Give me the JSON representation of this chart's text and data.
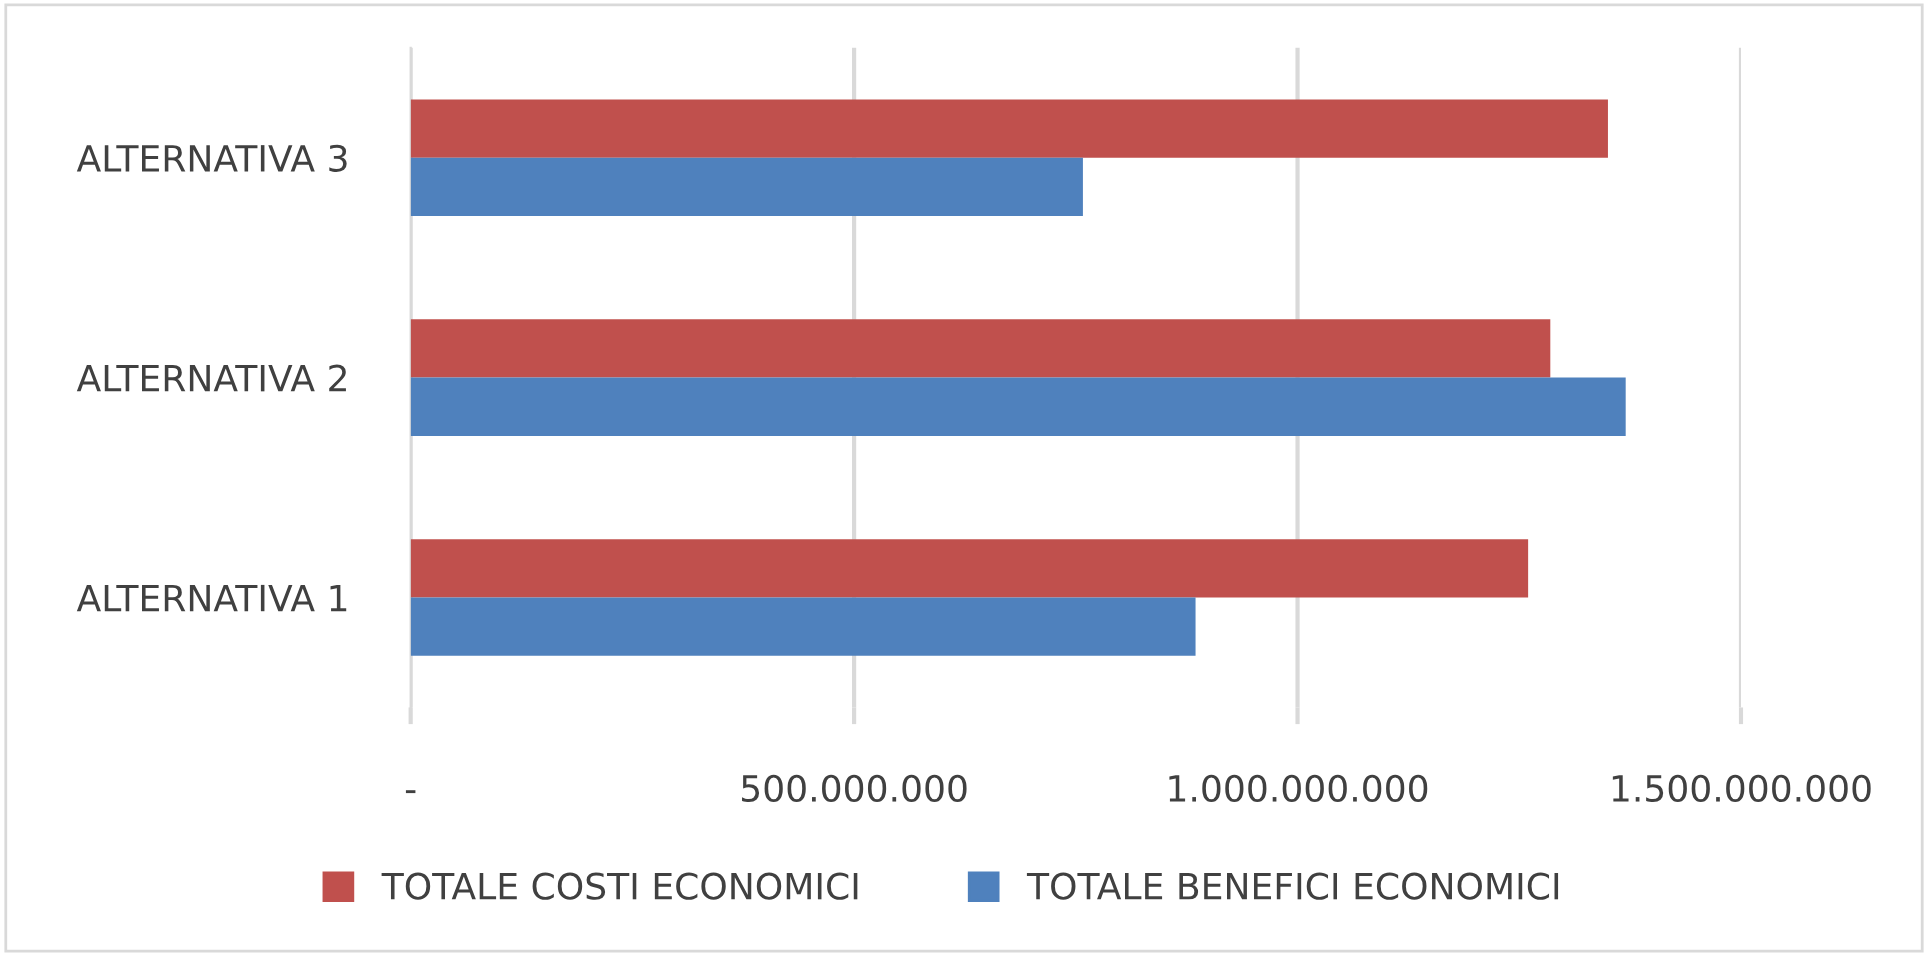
{
  "chart_data": {
    "type": "bar",
    "orientation": "horizontal",
    "categories": [
      "ALTERNATIVA 3",
      "ALTERNATIVA 2",
      "ALTERNATIVA 1"
    ],
    "series": [
      {
        "name": "TOTALE COSTI ECONOMICI",
        "color": "#c0504d",
        "values": [
          1350000000,
          1285000000,
          1260000000
        ]
      },
      {
        "name": "TOTALE BENEFICI ECONOMICI",
        "color": "#4f81bd",
        "values": [
          758000000,
          1370000000,
          885000000
        ]
      }
    ],
    "xlim": [
      0,
      1500000000
    ],
    "xticks": [
      {
        "value": 0,
        "label": "-"
      },
      {
        "value": 500000000,
        "label": "500.000.000"
      },
      {
        "value": 1000000000,
        "label": "1.000.000.000"
      },
      {
        "value": 1500000000,
        "label": "1.500.000.000"
      }
    ],
    "grid": "x",
    "legend": "bottom"
  }
}
